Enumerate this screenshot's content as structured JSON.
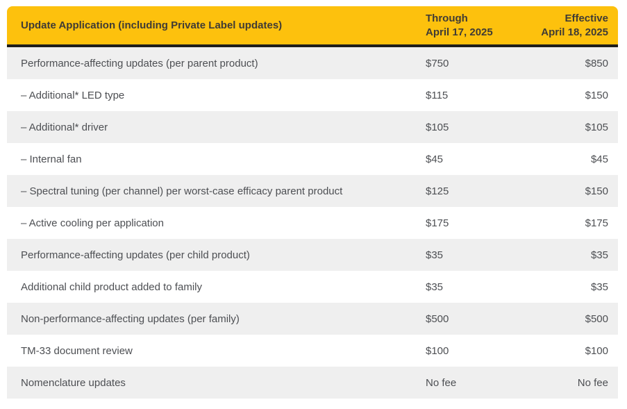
{
  "table": {
    "header": {
      "title": "Update Application (including Private Label updates)",
      "through_line1": "Through",
      "through_line2": "April 17, 2025",
      "effective_line1": "Effective",
      "effective_line2": "April 18, 2025"
    },
    "rows": [
      {
        "label": "Performance-affecting updates (per parent product)",
        "through": "$750",
        "effective": "$850"
      },
      {
        "label": "– Additional* LED type",
        "through": "$115",
        "effective": "$150"
      },
      {
        "label": "– Additional* driver",
        "through": "$105",
        "effective": "$105"
      },
      {
        "label": "– Internal fan",
        "through": "$45",
        "effective": "$45"
      },
      {
        "label": "– Spectral tuning (per channel) per worst-case efficacy parent product",
        "through": "$125",
        "effective": "$150"
      },
      {
        "label": "– Active cooling per application",
        "through": "$175",
        "effective": "$175"
      },
      {
        "label": "Performance-affecting updates (per child product)",
        "through": "$35",
        "effective": "$35"
      },
      {
        "label": "Additional child product added to family",
        "through": "$35",
        "effective": "$35"
      },
      {
        "label": "Non-performance-affecting updates (per family)",
        "through": "$500",
        "effective": "$500"
      },
      {
        "label": "TM-33 document review",
        "through": "$100",
        "effective": "$100"
      },
      {
        "label": "Nomenclature updates",
        "through": "No fee",
        "effective": "No fee"
      }
    ],
    "colors": {
      "header_bg": "#FDC10D",
      "header_text": "#3F3B35",
      "divider": "#1D1D1B",
      "row_bg": "#FFFFFF",
      "row_alt_bg": "#EFEFEF",
      "body_text": "#4D4F53"
    }
  }
}
